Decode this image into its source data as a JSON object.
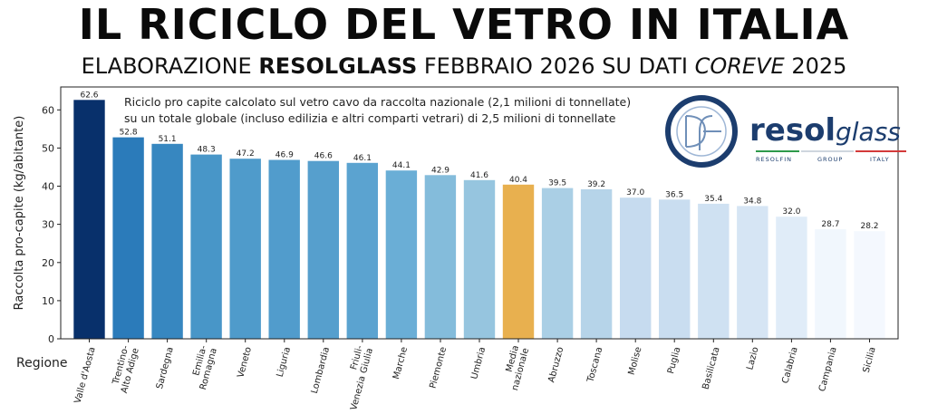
{
  "header": {
    "title": "IL RICICLO DEL VETRO IN ITALIA",
    "subtitle_prefix": "ELABORAZIONE ",
    "subtitle_brand": "RESOLGLASS",
    "subtitle_mid": " FEBBRAIO 2026 SU DATI ",
    "subtitle_source": "COREVE",
    "subtitle_suffix": " 2025"
  },
  "annotation": {
    "line1": "Riciclo pro capite calcolato sul vetro cavo da raccolta nazionale (2,1 milioni di tonnellate)",
    "line2": "su un totale globale (incluso edilizia e altri comparti vetrari) di  2,5 milioni di tonnellate"
  },
  "logo": {
    "brand_bold": "resol",
    "brand_light": "glass",
    "tag1": "RESOLFIN",
    "tag2": "GROUP",
    "tag3": "ITALY"
  },
  "colors": {
    "highlight": "#E8B04F",
    "dark": "#08306B",
    "light": "#F7FBFF"
  },
  "chart_data": {
    "type": "bar",
    "title": "IL RICICLO DEL VETRO IN ITALIA",
    "xlabel": "Regione",
    "ylabel": "Raccolta pro-capite (kg/abitante)",
    "ylim": [
      0,
      66
    ],
    "yticks": [
      0,
      10,
      20,
      30,
      40,
      50,
      60
    ],
    "categories": [
      "Valle d'Aosta",
      "Trentino-\nAlto Adige",
      "Sardegna",
      "Emilia-\nRomagna",
      "Veneto",
      "Liguria",
      "Lombardia",
      "Friuli-\nVenezia Giulia",
      "Marche",
      "Piemonte",
      "Umbria",
      "Media\nnazionale",
      "Abruzzo",
      "Toscana",
      "Molise",
      "Puglia",
      "Basilicata",
      "Lazio",
      "Calabria",
      "Campania",
      "Sicilia"
    ],
    "values": [
      62.6,
      52.8,
      51.1,
      48.3,
      47.2,
      46.9,
      46.6,
      46.1,
      44.1,
      42.9,
      41.6,
      40.4,
      39.5,
      39.2,
      37.0,
      36.5,
      35.4,
      34.8,
      32.0,
      28.7,
      28.2
    ],
    "value_labels": [
      "62.6",
      "52.8",
      "51.1",
      "48.3",
      "47.2",
      "46.9",
      "46.6",
      "46.1",
      "44.1",
      "42.9",
      "41.6",
      "40.4",
      "39.5",
      "39.2",
      "37.0",
      "36.5",
      "35.4",
      "34.8",
      "32.0",
      "28.7",
      "28.2"
    ],
    "bar_colors": [
      "#08306B",
      "#2B7BBA",
      "#3787C0",
      "#4896C8",
      "#4F9BCB",
      "#519CCC",
      "#569FCD",
      "#5BA3D0",
      "#6AAED6",
      "#84BCDB",
      "#96C5DF",
      "#E8B04F",
      "#AACFE5",
      "#B6D4E9",
      "#C6DBEF",
      "#C9DDF0",
      "#CFE1F2",
      "#D6E5F4",
      "#E0ECF8",
      "#F1F7FD",
      "#F4F8FE"
    ],
    "highlight_category": "Media\nnazionale",
    "grid": false
  }
}
